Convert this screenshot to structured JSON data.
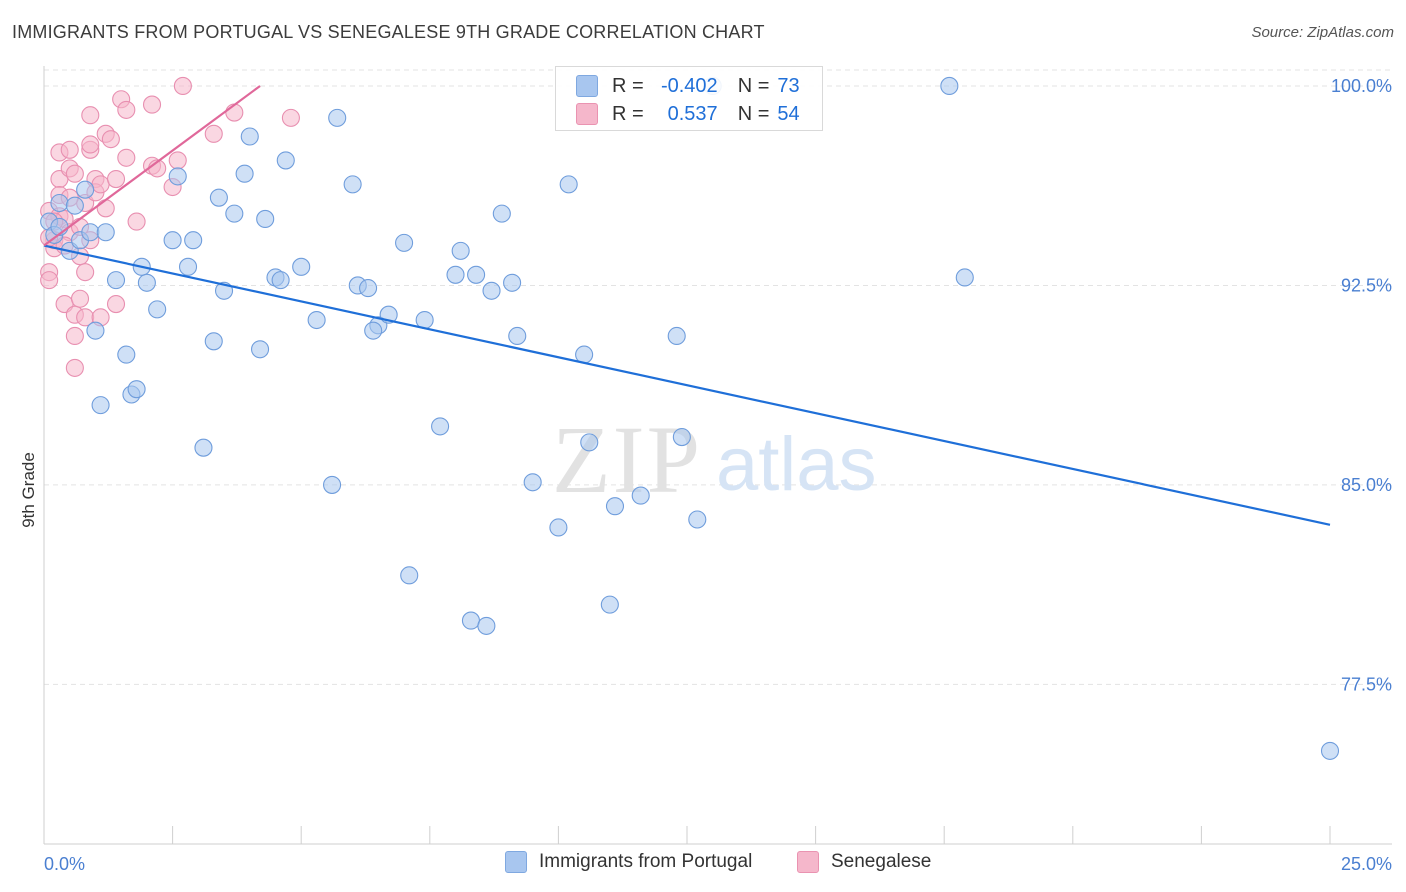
{
  "header": {
    "title": "IMMIGRANTS FROM PORTUGAL VS SENEGALESE 9TH GRADE CORRELATION CHART",
    "source": "Source: ZipAtlas.com"
  },
  "watermark": {
    "zip": "ZIP",
    "atlas": "atlas"
  },
  "legend": {
    "rows": [
      {
        "r_label": "R =",
        "r_value": "-0.402",
        "n_label": "N =",
        "n_value": "73",
        "color": "#a8c6ef"
      },
      {
        "r_label": "R =",
        "r_value": "0.537",
        "n_label": "N =",
        "n_value": "54",
        "color": "#f5b7cb"
      }
    ]
  },
  "bottom_legend": [
    {
      "label": "Immigrants from Portugal",
      "color": "#a8c6ef"
    },
    {
      "label": "Senegalese",
      "color": "#f5b7cb"
    }
  ],
  "chart_data": {
    "type": "scatter",
    "title": "IMMIGRANTS FROM PORTUGAL VS SENEGALESE 9TH GRADE CORRELATION CHART",
    "xlabel": "",
    "ylabel": "9th Grade",
    "xlim": [
      0,
      25
    ],
    "ylim": [
      71.5,
      100.6
    ],
    "x_tick_labels": [
      "0.0%",
      "25.0%"
    ],
    "y_ticks": [
      77.5,
      85.0,
      92.5,
      100.0
    ],
    "y_tick_labels": [
      "77.5%",
      "85.0%",
      "92.5%",
      "100.0%"
    ],
    "grid": true,
    "colors": {
      "blue_fill": "#a8c6ef",
      "blue_line": "#1f6fd8",
      "pink_fill": "#f5b7cb",
      "pink_line": "#e0689a"
    },
    "series": [
      {
        "name": "Immigrants from Portugal",
        "trend": {
          "x": [
            0.0,
            25.0
          ],
          "y": [
            94.0,
            83.5
          ]
        },
        "points": [
          [
            0.1,
            94.9
          ],
          [
            0.2,
            94.4
          ],
          [
            0.3,
            95.6
          ],
          [
            0.5,
            93.8
          ],
          [
            0.7,
            94.2
          ],
          [
            0.8,
            96.1
          ],
          [
            0.9,
            94.5
          ],
          [
            1.0,
            90.8
          ],
          [
            1.1,
            88.0
          ],
          [
            1.4,
            92.7
          ],
          [
            1.6,
            89.9
          ],
          [
            1.7,
            88.4
          ],
          [
            1.8,
            88.6
          ],
          [
            1.9,
            93.2
          ],
          [
            2.0,
            92.6
          ],
          [
            2.2,
            91.6
          ],
          [
            2.5,
            94.2
          ],
          [
            2.8,
            93.2
          ],
          [
            2.9,
            94.2
          ],
          [
            3.1,
            86.4
          ],
          [
            3.3,
            90.4
          ],
          [
            3.4,
            95.8
          ],
          [
            3.5,
            92.3
          ],
          [
            3.7,
            95.2
          ],
          [
            3.9,
            96.7
          ],
          [
            4.0,
            98.1
          ],
          [
            4.2,
            90.1
          ],
          [
            4.3,
            95.0
          ],
          [
            4.5,
            92.8
          ],
          [
            4.6,
            92.7
          ],
          [
            4.7,
            97.2
          ],
          [
            5.0,
            93.2
          ],
          [
            5.3,
            91.2
          ],
          [
            5.6,
            85.0
          ],
          [
            5.7,
            98.8
          ],
          [
            6.0,
            96.3
          ],
          [
            6.1,
            92.5
          ],
          [
            6.3,
            92.4
          ],
          [
            6.5,
            91.0
          ],
          [
            6.7,
            91.4
          ],
          [
            7.0,
            94.1
          ],
          [
            7.1,
            81.6
          ],
          [
            7.4,
            91.2
          ],
          [
            7.7,
            87.2
          ],
          [
            8.0,
            92.9
          ],
          [
            8.1,
            93.8
          ],
          [
            8.3,
            79.9
          ],
          [
            8.6,
            79.7
          ],
          [
            8.7,
            92.3
          ],
          [
            8.9,
            95.2
          ],
          [
            9.1,
            92.6
          ],
          [
            9.2,
            90.6
          ],
          [
            9.5,
            85.1
          ],
          [
            10.0,
            83.4
          ],
          [
            10.5,
            89.9
          ],
          [
            10.6,
            86.6
          ],
          [
            11.0,
            80.5
          ],
          [
            11.1,
            84.2
          ],
          [
            11.6,
            84.6
          ],
          [
            12.3,
            90.6
          ],
          [
            12.4,
            86.8
          ],
          [
            12.7,
            83.7
          ],
          [
            13.0,
            100.0
          ],
          [
            17.6,
            100.0
          ],
          [
            17.9,
            92.8
          ],
          [
            25.0,
            75.0
          ],
          [
            0.3,
            94.7
          ],
          [
            0.6,
            95.5
          ],
          [
            1.2,
            94.5
          ],
          [
            2.6,
            96.6
          ],
          [
            6.4,
            90.8
          ],
          [
            8.4,
            92.9
          ],
          [
            10.2,
            96.3
          ]
        ]
      },
      {
        "name": "Senegalese",
        "trend": {
          "x": [
            0.0,
            4.2
          ],
          "y": [
            94.0,
            100.0
          ]
        },
        "points": [
          [
            0.1,
            95.3
          ],
          [
            0.1,
            93.0
          ],
          [
            0.1,
            92.7
          ],
          [
            0.2,
            94.2
          ],
          [
            0.2,
            93.9
          ],
          [
            0.3,
            95.1
          ],
          [
            0.3,
            97.5
          ],
          [
            0.3,
            96.5
          ],
          [
            0.4,
            95.0
          ],
          [
            0.4,
            91.8
          ],
          [
            0.5,
            94.5
          ],
          [
            0.5,
            96.9
          ],
          [
            0.5,
            97.6
          ],
          [
            0.6,
            96.7
          ],
          [
            0.6,
            91.4
          ],
          [
            0.6,
            90.6
          ],
          [
            0.7,
            93.6
          ],
          [
            0.7,
            92.0
          ],
          [
            0.7,
            94.7
          ],
          [
            0.8,
            95.6
          ],
          [
            0.8,
            93.0
          ],
          [
            0.8,
            91.3
          ],
          [
            0.9,
            98.9
          ],
          [
            0.9,
            97.6
          ],
          [
            0.9,
            97.8
          ],
          [
            1.0,
            96.5
          ],
          [
            1.0,
            96.0
          ],
          [
            1.1,
            96.3
          ],
          [
            1.1,
            91.3
          ],
          [
            1.2,
            98.2
          ],
          [
            1.3,
            98.0
          ],
          [
            1.4,
            96.5
          ],
          [
            1.4,
            91.8
          ],
          [
            1.5,
            99.5
          ],
          [
            1.6,
            99.1
          ],
          [
            1.6,
            97.3
          ],
          [
            2.1,
            99.3
          ],
          [
            2.1,
            97.0
          ],
          [
            2.2,
            96.9
          ],
          [
            2.5,
            96.2
          ],
          [
            2.6,
            97.2
          ],
          [
            2.7,
            100.0
          ],
          [
            3.3,
            98.2
          ],
          [
            3.7,
            99.0
          ],
          [
            4.8,
            98.8
          ],
          [
            0.6,
            89.4
          ],
          [
            0.3,
            95.9
          ],
          [
            0.2,
            94.9
          ],
          [
            0.4,
            94.0
          ],
          [
            0.9,
            94.2
          ],
          [
            1.2,
            95.4
          ],
          [
            0.5,
            95.8
          ],
          [
            1.8,
            94.9
          ],
          [
            0.1,
            94.3
          ]
        ]
      }
    ]
  }
}
